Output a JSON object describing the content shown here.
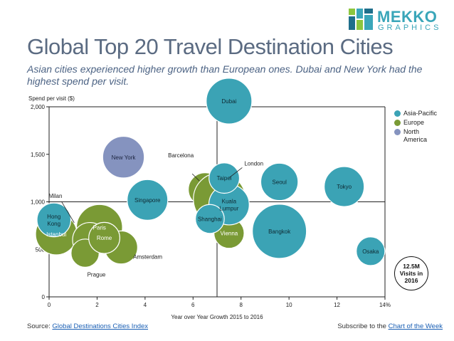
{
  "brand": {
    "line1": "MEKKO",
    "line2": "GRAPHICS",
    "colors": {
      "teal": "#3aa6b9",
      "green": "#8cc63f",
      "blue": "#1f6f8b"
    }
  },
  "header": {
    "title": "Global Top 20 Travel Destination Cities",
    "subtitle": "Asian cities experienced higher growth than European ones.  Dubai and New York had the highest spend per visit."
  },
  "chart_data": {
    "type": "bubble",
    "title": "Global Top 20 Travel Destination Cities",
    "xlabel": "Year over Year Growth 2015 to 2016",
    "ylabel": "Spend per visit ($)",
    "xlim": [
      0,
      14
    ],
    "ylim": [
      0,
      2000
    ],
    "x_ticks": [
      "0",
      "2",
      "4",
      "6",
      "8",
      "10",
      "12",
      "14%"
    ],
    "y_ticks": [
      "0",
      "500",
      "1,000",
      "1,500",
      "2,000"
    ],
    "y_tick_values": [
      0,
      500,
      1000,
      1500,
      2000
    ],
    "x_tick_values": [
      0,
      2,
      4,
      6,
      8,
      10,
      12,
      14
    ],
    "reference_lines": {
      "x": 7.0,
      "y": 1000
    },
    "size_legend": "12.5M Visits in 2016",
    "size_legend_value": 12.5,
    "regions": [
      {
        "name": "Asia-Pacific",
        "color": "#3ba3b5"
      },
      {
        "name": "Europe",
        "color": "#7a9a35"
      },
      {
        "name": "North America",
        "color": "#8593bf"
      }
    ],
    "points": [
      {
        "city": "Dubai",
        "region": "Asia-Pacific",
        "x": 7.5,
        "y": 2060,
        "visits": 15.3,
        "label": "inside"
      },
      {
        "city": "New York",
        "region": "North America",
        "x": 3.1,
        "y": 1470,
        "visits": 12.7,
        "label": "inside"
      },
      {
        "city": "Barcelona",
        "region": "Europe",
        "x": 6.5,
        "y": 1130,
        "visits": 8.2,
        "label": "outside"
      },
      {
        "city": "London",
        "region": "Europe",
        "x": 7.1,
        "y": 1030,
        "visits": 19.9,
        "label": "outside"
      },
      {
        "city": "Taipei",
        "region": "Asia-Pacific",
        "x": 7.3,
        "y": 1250,
        "visits": 6.8,
        "label": "inside"
      },
      {
        "city": "Kuala Lumpur",
        "region": "Asia-Pacific",
        "x": 7.5,
        "y": 970,
        "visits": 12.0,
        "label": "inside"
      },
      {
        "city": "Shanghai",
        "region": "Asia-Pacific",
        "x": 6.7,
        "y": 820,
        "visits": 6.1,
        "label": "inside"
      },
      {
        "city": "Vienna",
        "region": "Europe",
        "x": 7.5,
        "y": 670,
        "visits": 6.7,
        "label": "inside"
      },
      {
        "city": "Seoul",
        "region": "Asia-Pacific",
        "x": 9.6,
        "y": 1210,
        "visits": 10.2,
        "label": "inside"
      },
      {
        "city": "Tokyo",
        "region": "Asia-Pacific",
        "x": 12.3,
        "y": 1160,
        "visits": 11.7,
        "label": "inside"
      },
      {
        "city": "Singapore",
        "region": "Asia-Pacific",
        "x": 4.1,
        "y": 1020,
        "visits": 12.1,
        "label": "inside"
      },
      {
        "city": "Bangkok",
        "region": "Asia-Pacific",
        "x": 9.6,
        "y": 690,
        "visits": 21.5,
        "label": "inside"
      },
      {
        "city": "Osaka",
        "region": "Asia-Pacific",
        "x": 13.4,
        "y": 480,
        "visits": 6.0,
        "label": "inside"
      },
      {
        "city": "Hong Kong",
        "region": "Asia-Pacific",
        "x": 0.2,
        "y": 810,
        "visits": 8.4,
        "label": "inside"
      },
      {
        "city": "Istanbul",
        "region": "Europe",
        "x": 0.3,
        "y": 660,
        "visits": 12.6,
        "label": "inside"
      },
      {
        "city": "Milan",
        "region": "Europe",
        "x": 1.7,
        "y": 600,
        "visits": 8.8,
        "label": "outside"
      },
      {
        "city": "Paris",
        "region": "Europe",
        "x": 2.1,
        "y": 730,
        "visits": 15.5,
        "label": "inside"
      },
      {
        "city": "Rome",
        "region": "Europe",
        "x": 2.3,
        "y": 620,
        "visits": 7.1,
        "label": "inside"
      },
      {
        "city": "Amsterdam",
        "region": "Europe",
        "x": 3.0,
        "y": 520,
        "visits": 8.0,
        "label": "outside"
      },
      {
        "city": "Prague",
        "region": "Europe",
        "x": 1.5,
        "y": 460,
        "visits": 5.8,
        "label": "outside"
      }
    ]
  },
  "footer": {
    "source_prefix": "Source: ",
    "source_link": "Global Destinations Cities Index",
    "subscribe_prefix": "Subscribe to the ",
    "subscribe_link": "Chart of the Week"
  }
}
